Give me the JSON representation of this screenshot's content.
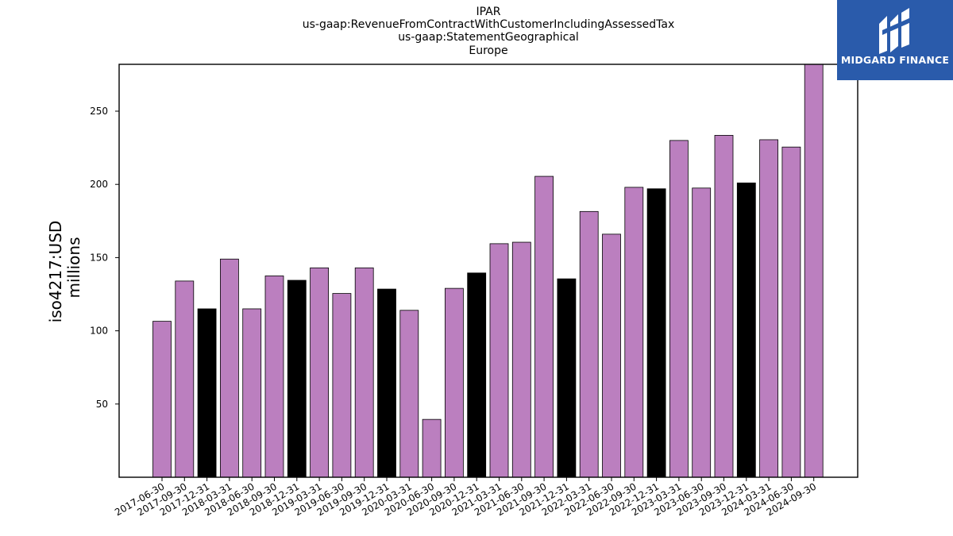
{
  "chart_data": {
    "type": "bar",
    "title_lines": [
      "IPAR",
      "us-gaap:RevenueFromContractWithCustomerIncludingAssessedTax",
      "us-gaap:StatementGeographical",
      "Europe"
    ],
    "ylabel_lines": [
      "iso4217:USD",
      "millions"
    ],
    "xlabel": "",
    "ylim": [
      0,
      282
    ],
    "yticks": [
      50,
      100,
      150,
      200,
      250
    ],
    "categories": [
      "2017-06-30",
      "2017-09-30",
      "2017-12-31",
      "2018-03-31",
      "2018-06-30",
      "2018-09-30",
      "2018-12-31",
      "2019-03-31",
      "2019-06-30",
      "2019-09-30",
      "2019-12-31",
      "2020-03-31",
      "2020-06-30",
      "2020-09-30",
      "2020-12-31",
      "2021-03-31",
      "2021-06-30",
      "2021-09-30",
      "2021-12-31",
      "2022-03-31",
      "2022-06-30",
      "2022-09-30",
      "2022-12-31",
      "2023-03-31",
      "2023-06-30",
      "2023-09-30",
      "2023-12-31",
      "2024-03-31",
      "2024-06-30",
      "2024-09-30"
    ],
    "values": [
      106.5,
      134,
      115,
      149,
      115,
      137.5,
      134.5,
      143,
      125.5,
      143,
      128.5,
      114,
      39.5,
      129,
      139.5,
      159.5,
      160.5,
      205.5,
      135.5,
      181.5,
      166,
      198,
      197,
      230,
      197.5,
      233.5,
      201,
      230.5,
      225.5,
      282
    ],
    "bar_colors": [
      "#bb7fbf",
      "#bb7fbf",
      "#000000",
      "#bb7fbf",
      "#bb7fbf",
      "#bb7fbf",
      "#000000",
      "#bb7fbf",
      "#bb7fbf",
      "#bb7fbf",
      "#000000",
      "#bb7fbf",
      "#bb7fbf",
      "#bb7fbf",
      "#000000",
      "#bb7fbf",
      "#bb7fbf",
      "#bb7fbf",
      "#000000",
      "#bb7fbf",
      "#bb7fbf",
      "#bb7fbf",
      "#000000",
      "#bb7fbf",
      "#bb7fbf",
      "#bb7fbf",
      "#000000",
      "#bb7fbf",
      "#bb7fbf",
      "#bb7fbf"
    ],
    "colors": {
      "quarter": "#bb7fbf",
      "year_end": "#000000",
      "edge": "#000000"
    },
    "grid": false,
    "legend": "none"
  },
  "logo": {
    "text": "MIDGARD FINANCE",
    "background": "#2a5bab"
  }
}
